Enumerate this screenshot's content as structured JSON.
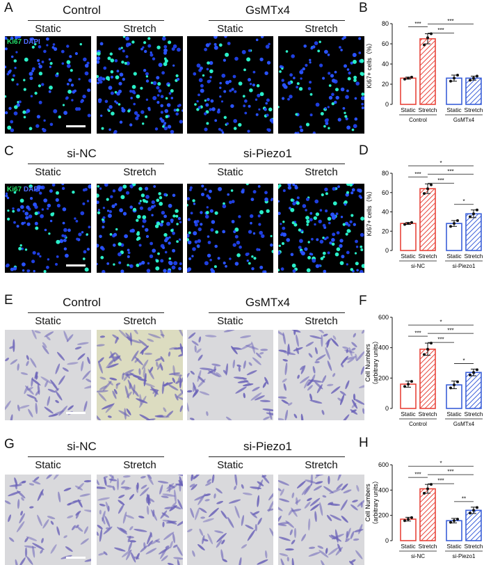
{
  "panels": [
    {
      "label": "A",
      "groups": [
        "Control",
        "GsMTx4"
      ],
      "conditions": [
        "Static",
        "Stretch",
        "Static",
        "Stretch"
      ],
      "legend": {
        "a": "Ki67",
        "b": "DAPI"
      }
    },
    {
      "label": "C",
      "groups": [
        "si-NC",
        "si-Piezo1"
      ],
      "conditions": [
        "Static",
        "Stretch",
        "Static",
        "Stretch"
      ],
      "legend": {
        "a": "Ki67",
        "b": "DAPI"
      }
    },
    {
      "label": "E",
      "groups": [
        "Control",
        "GsMTx4"
      ],
      "conditions": [
        "Static",
        "Stretch",
        "Static",
        "Stretch"
      ]
    },
    {
      "label": "G",
      "groups": [
        "si-NC",
        "si-Piezo1"
      ],
      "conditions": [
        "Static",
        "Stretch",
        "Static",
        "Stretch"
      ]
    }
  ],
  "colors": {
    "red": "#e8443a",
    "blue": "#3a5fd9",
    "green": "#22e06a",
    "nucleus": "#19d6b0"
  },
  "chart_data": [
    {
      "panel": "B",
      "type": "bar",
      "ylabel": "Ki67+ cells（%）",
      "ylim": [
        0,
        80
      ],
      "yticks": [
        0,
        20,
        40,
        60,
        80
      ],
      "categories": [
        "Static",
        "Stretch",
        "Static",
        "Stretch"
      ],
      "groups": [
        "Control",
        "GsMTx4"
      ],
      "values": [
        26,
        65,
        26,
        26
      ],
      "errors": [
        1,
        5,
        3,
        2
      ],
      "points": [
        [
          25,
          26,
          27
        ],
        [
          59,
          66,
          70
        ],
        [
          23,
          26,
          29
        ],
        [
          24,
          26,
          28
        ]
      ],
      "patterns": [
        "open",
        "hatch",
        "open",
        "hatch"
      ],
      "bar_colors": [
        "red",
        "red",
        "blue",
        "blue"
      ],
      "significance": [
        {
          "from": 0,
          "to": 1,
          "label": "***"
        },
        {
          "from": 1,
          "to": 2,
          "label": "***"
        },
        {
          "from": 1,
          "to": 3,
          "label": "***"
        }
      ]
    },
    {
      "panel": "D",
      "type": "bar",
      "ylabel": "Ki67+ cells（%）",
      "ylim": [
        0,
        80
      ],
      "yticks": [
        0,
        20,
        40,
        60,
        80
      ],
      "categories": [
        "Static",
        "Stretch",
        "Static",
        "Stretch"
      ],
      "groups": [
        "si-NC",
        "si-Piezo1"
      ],
      "values": [
        28,
        64,
        28,
        38
      ],
      "errors": [
        1,
        5,
        3,
        4
      ],
      "points": [
        [
          27,
          28,
          29
        ],
        [
          59,
          64,
          68
        ],
        [
          25,
          28,
          31
        ],
        [
          35,
          38,
          42
        ]
      ],
      "patterns": [
        "open",
        "hatch",
        "open",
        "hatch"
      ],
      "bar_colors": [
        "red",
        "red",
        "blue",
        "blue"
      ],
      "significance": [
        {
          "from": 0,
          "to": 1,
          "label": "***"
        },
        {
          "from": 1,
          "to": 2,
          "label": "***"
        },
        {
          "from": 1,
          "to": 3,
          "label": "***"
        },
        {
          "from": 0,
          "to": 3,
          "label": "*"
        },
        {
          "from": 2,
          "to": 3,
          "label": "*"
        }
      ]
    },
    {
      "panel": "F",
      "type": "bar",
      "ylabel": "Cell Numbers",
      "ylabel2": "（arbitrary units）",
      "ylim": [
        0,
        600
      ],
      "yticks": [
        0,
        200,
        400,
        600
      ],
      "categories": [
        "Static",
        "Stretch",
        "Static",
        "Stretch"
      ],
      "groups": [
        "Control",
        "GsMTx4"
      ],
      "values": [
        160,
        390,
        155,
        237
      ],
      "errors": [
        20,
        40,
        25,
        22
      ],
      "points": [
        [
          145,
          160,
          178
        ],
        [
          355,
          390,
          430
        ],
        [
          135,
          155,
          175
        ],
        [
          220,
          237,
          255
        ]
      ],
      "patterns": [
        "open",
        "hatch",
        "open",
        "hatch"
      ],
      "bar_colors": [
        "red",
        "red",
        "blue",
        "blue"
      ],
      "significance": [
        {
          "from": 0,
          "to": 1,
          "label": "***"
        },
        {
          "from": 1,
          "to": 2,
          "label": "***"
        },
        {
          "from": 1,
          "to": 3,
          "label": "***"
        },
        {
          "from": 0,
          "to": 3,
          "label": "*"
        },
        {
          "from": 2,
          "to": 3,
          "label": "*"
        }
      ]
    },
    {
      "panel": "H",
      "type": "bar",
      "ylabel": "Cell Numbers",
      "ylabel2": "（arbitrary units）",
      "ylim": [
        0,
        600
      ],
      "yticks": [
        0,
        200,
        400,
        600
      ],
      "categories": [
        "Static",
        "Stretch",
        "Static",
        "Stretch"
      ],
      "groups": [
        "si-NC",
        "si-Piezo1"
      ],
      "values": [
        170,
        410,
        158,
        240
      ],
      "errors": [
        15,
        35,
        18,
        25
      ],
      "points": [
        [
          158,
          170,
          182
        ],
        [
          375,
          410,
          445
        ],
        [
          145,
          158,
          170
        ],
        [
          218,
          240,
          262
        ]
      ],
      "patterns": [
        "open",
        "hatch",
        "open",
        "hatch"
      ],
      "bar_colors": [
        "red",
        "red",
        "blue",
        "blue"
      ],
      "significance": [
        {
          "from": 0,
          "to": 1,
          "label": "***"
        },
        {
          "from": 1,
          "to": 2,
          "label": "***"
        },
        {
          "from": 1,
          "to": 3,
          "label": "***"
        },
        {
          "from": 0,
          "to": 3,
          "label": "*"
        },
        {
          "from": 2,
          "to": 3,
          "label": "**"
        }
      ]
    }
  ]
}
